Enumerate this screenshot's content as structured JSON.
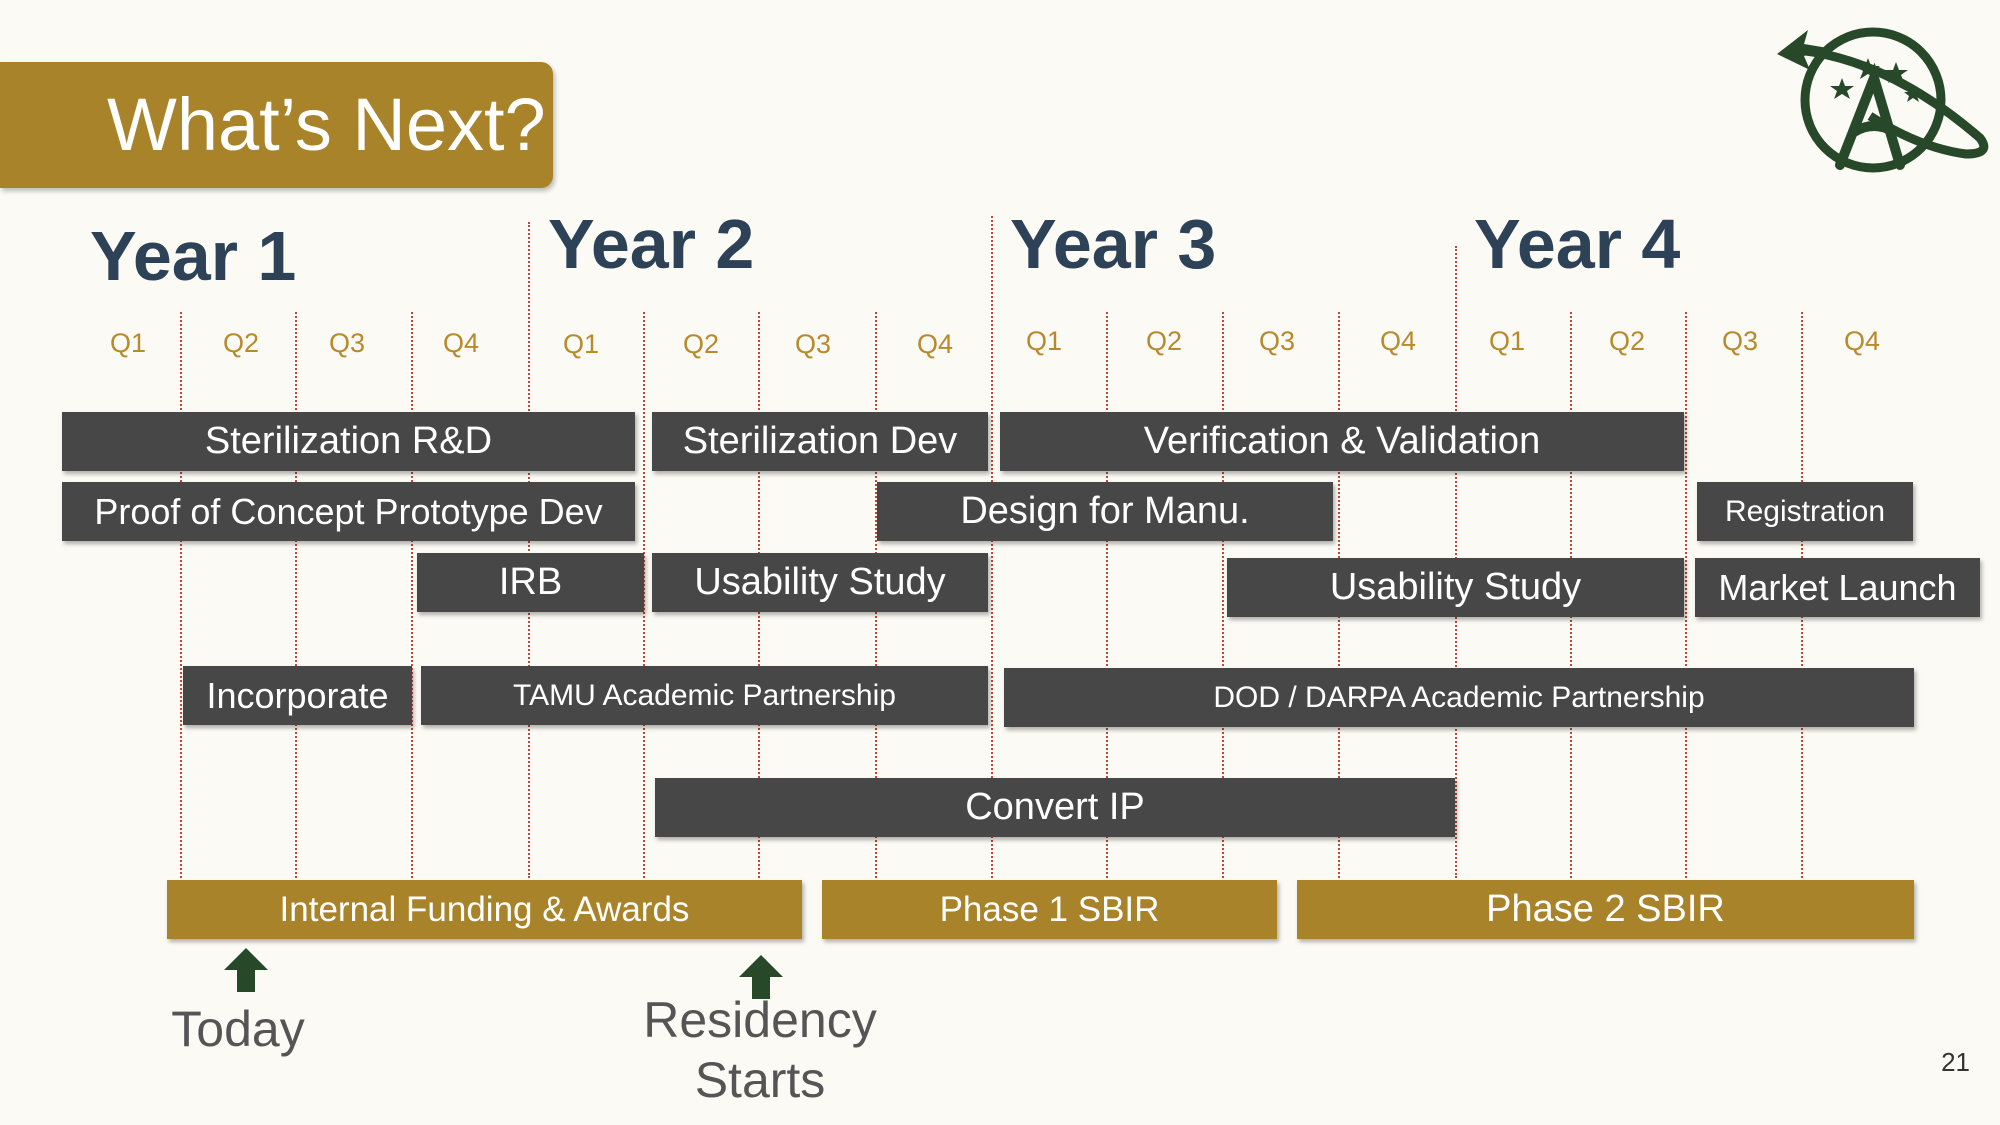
{
  "slide": {
    "title": "What’s Next?",
    "page_number": "21"
  },
  "timeline": {
    "years": [
      "Year 1",
      "Year 2",
      "Year 3",
      "Year 4"
    ],
    "quarters": [
      "Q1",
      "Q2",
      "Q3",
      "Q4",
      "Q1",
      "Q2",
      "Q3",
      "Q4",
      "Q1",
      "Q2",
      "Q3",
      "Q4",
      "Q1",
      "Q2",
      "Q3",
      "Q4"
    ]
  },
  "bars": {
    "sterilization_rd": "Sterilization R&D",
    "sterilization_dev": "Sterilization Dev",
    "verification_validation": "Verification & Validation",
    "proof_of_concept": "Proof of Concept Prototype Dev",
    "design_for_manu": "Design for Manu.",
    "registration": "Registration",
    "irb": "IRB",
    "usability_study_1": "Usability Study",
    "usability_study_2": "Usability Study",
    "market_launch": "Market Launch",
    "incorporate": "Incorporate",
    "tamu_partnership": "TAMU Academic Partnership",
    "dod_darpa_partnership": "DOD / DARPA Academic Partnership",
    "convert_ip": "Convert IP",
    "internal_funding": "Internal Funding & Awards",
    "phase1_sbir": "Phase 1 SBIR",
    "phase2_sbir": "Phase 2 SBIR"
  },
  "markers": {
    "today": "Today",
    "residency_line1": "Residency",
    "residency_line2": "Starts"
  },
  "colors": {
    "gold": "#a98329",
    "dark_bar": "#474747",
    "year_text": "#2d4257",
    "quarter_text": "#b98a2c",
    "logo_green": "#27492a",
    "arrow_green": "#27492a",
    "grid_line": "#c2463a"
  }
}
